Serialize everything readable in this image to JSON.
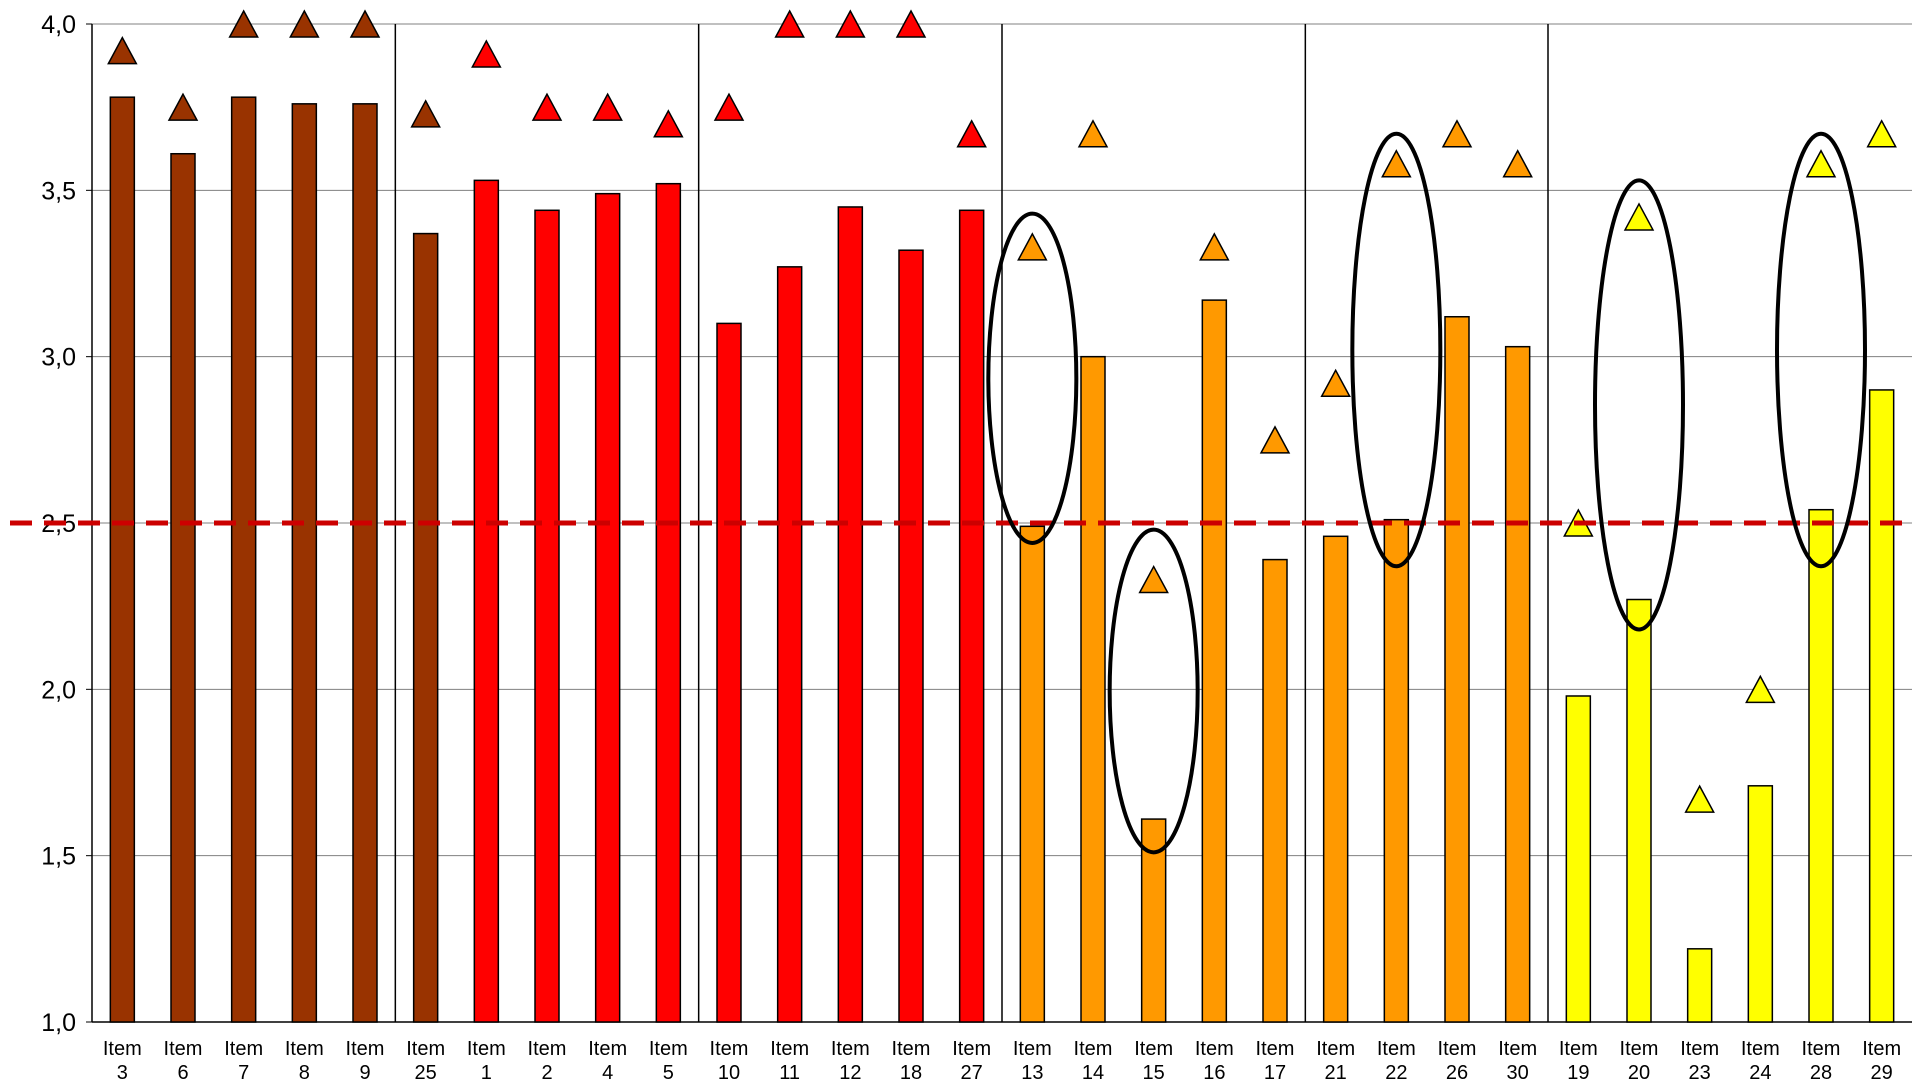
{
  "chart_data": {
    "type": "bar",
    "title": "",
    "xlabel": "",
    "ylabel": "",
    "ylim": [
      1.0,
      4.0
    ],
    "grid": true,
    "legend": "none",
    "yticks": [
      "1,0",
      "1,5",
      "2,0",
      "2,5",
      "3,0",
      "3,5",
      "4,0"
    ],
    "categories": [
      "Item 3",
      "Item 6",
      "Item 7",
      "Item 8",
      "Item 9",
      "Item 25",
      "Item 1",
      "Item 2",
      "Item 4",
      "Item 5",
      "Item 10",
      "Item 11",
      "Item 12",
      "Item 18",
      "Item 27",
      "Item 13",
      "Item 14",
      "Item 15",
      "Item 16",
      "Item 17",
      "Item 21",
      "Item 22",
      "Item 26",
      "Item 30",
      "Item 19",
      "Item 20",
      "Item 23",
      "Item 24",
      "Item 28",
      "Item 29"
    ],
    "series": [
      {
        "type": "bar",
        "values": [
          3.78,
          3.61,
          3.78,
          3.76,
          3.76,
          3.37,
          3.53,
          3.44,
          3.49,
          3.52,
          3.1,
          3.27,
          3.45,
          3.32,
          3.44,
          2.49,
          3.0,
          1.61,
          3.17,
          2.39,
          2.46,
          2.51,
          3.12,
          3.03,
          1.98,
          2.27,
          1.22,
          1.71,
          2.54,
          2.9
        ]
      },
      {
        "type": "marker-triangle",
        "values": [
          3.92,
          3.75,
          4.0,
          4.0,
          4.0,
          3.73,
          3.91,
          3.75,
          3.75,
          3.7,
          3.75,
          4.0,
          4.0,
          4.0,
          3.67,
          3.33,
          3.67,
          2.33,
          3.33,
          2.75,
          2.92,
          3.58,
          3.67,
          3.58,
          2.5,
          3.42,
          1.67,
          2.0,
          3.58,
          3.67
        ]
      }
    ],
    "category_colors": [
      "#993300",
      "#993300",
      "#993300",
      "#993300",
      "#993300",
      "#993300",
      "#ff0000",
      "#ff0000",
      "#ff0000",
      "#ff0000",
      "#ff0000",
      "#ff0000",
      "#ff0000",
      "#ff0000",
      "#ff0000",
      "#ff9900",
      "#ff9900",
      "#ff9900",
      "#ff9900",
      "#ff9900",
      "#ff9900",
      "#ff9900",
      "#ff9900",
      "#ff9900",
      "#ffff00",
      "#ffff00",
      "#ffff00",
      "#ffff00",
      "#ffff00",
      "#ffff00"
    ],
    "reference_line": {
      "value": 2.5,
      "style": "dashed",
      "color": "#cc0000"
    },
    "group_separators_after_index": [
      4,
      9,
      14,
      19,
      23
    ],
    "highlight_ellipses": [
      {
        "category": "Item 13",
        "y_range": [
          2.44,
          3.43
        ]
      },
      {
        "category": "Item 15",
        "y_range": [
          1.51,
          2.48
        ]
      },
      {
        "category": "Item 22",
        "y_range": [
          2.37,
          3.67
        ]
      },
      {
        "category": "Item 20",
        "y_range": [
          2.18,
          3.53
        ]
      },
      {
        "category": "Item 28",
        "y_range": [
          2.37,
          3.67
        ]
      }
    ]
  }
}
